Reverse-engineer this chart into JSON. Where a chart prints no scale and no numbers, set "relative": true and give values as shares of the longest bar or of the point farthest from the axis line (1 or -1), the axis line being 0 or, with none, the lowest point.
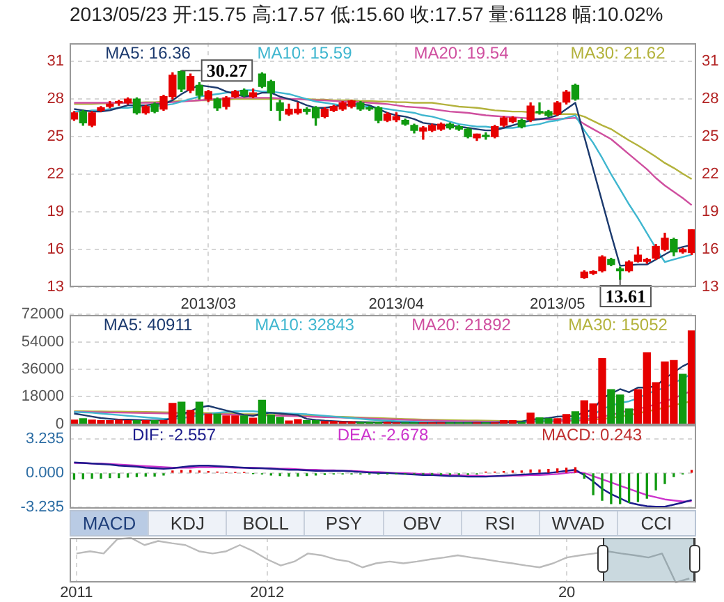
{
  "chart_data": [
    {
      "type": "candlestick",
      "title": "2013/05/23 开:15.75 高:17.57 低:15.60 收:17.57 量:61128 幅:10.02%",
      "categories": [
        null,
        null,
        null,
        null,
        null,
        null,
        null,
        null,
        null,
        null,
        null,
        null,
        null,
        null,
        null,
        "2013/03",
        null,
        null,
        null,
        null,
        null,
        null,
        null,
        null,
        null,
        null,
        null,
        null,
        null,
        null,
        null,
        null,
        null,
        null,
        null,
        null,
        "2013/04",
        null,
        null,
        null,
        null,
        null,
        null,
        null,
        null,
        null,
        null,
        null,
        null,
        null,
        null,
        null,
        null,
        null,
        "2013/05",
        null,
        null,
        null,
        null,
        null,
        null,
        null,
        null,
        null,
        null,
        null,
        null,
        null,
        null,
        null
      ],
      "ohlc": [
        [
          26.4,
          27.0,
          26.3,
          26.9
        ],
        [
          27.0,
          27.1,
          25.9,
          26.1
        ],
        [
          25.9,
          27.0,
          25.8,
          26.9
        ],
        [
          27.1,
          27.4,
          27.0,
          27.3
        ],
        [
          27.4,
          27.8,
          27.3,
          27.6
        ],
        [
          27.7,
          27.9,
          27.5,
          27.75
        ],
        [
          27.7,
          28.1,
          27.6,
          28.0
        ],
        [
          28.0,
          28.1,
          26.8,
          26.9
        ],
        [
          26.9,
          27.5,
          26.8,
          27.4
        ],
        [
          27.6,
          27.7,
          26.9,
          27.0
        ],
        [
          27.2,
          28.3,
          27.1,
          28.2
        ],
        [
          28.2,
          30.1,
          28.0,
          29.9
        ],
        [
          30.2,
          30.27,
          28.6,
          28.8
        ],
        [
          28.7,
          30.0,
          28.5,
          29.8
        ],
        [
          29.1,
          29.3,
          28.0,
          28.3
        ],
        [
          28.0,
          28.7,
          27.8,
          28.6
        ],
        [
          28.0,
          28.1,
          27.1,
          27.3
        ],
        [
          27.4,
          28.2,
          27.2,
          28.1
        ],
        [
          28.2,
          28.7,
          28.1,
          28.6
        ],
        [
          28.7,
          28.8,
          28.2,
          28.3
        ],
        [
          28.2,
          28.8,
          28.1,
          28.5
        ],
        [
          30.0,
          30.1,
          28.9,
          29.0
        ],
        [
          29.4,
          29.5,
          27.1,
          28.5
        ],
        [
          27.7,
          27.9,
          26.3,
          27.1
        ],
        [
          26.8,
          27.6,
          26.7,
          27.2
        ],
        [
          26.9,
          27.7,
          26.8,
          27.2
        ],
        [
          27.2,
          27.3,
          26.8,
          27.0
        ],
        [
          27.3,
          27.4,
          25.9,
          26.5
        ],
        [
          26.6,
          27.3,
          26.5,
          27.2
        ],
        [
          27.1,
          27.5,
          27.0,
          27.4
        ],
        [
          27.2,
          27.8,
          27.1,
          27.7
        ],
        [
          27.4,
          27.9,
          27.3,
          27.85
        ],
        [
          27.7,
          27.8,
          27.1,
          27.2
        ],
        [
          27.3,
          27.4,
          27.1,
          27.2
        ],
        [
          27.3,
          27.4,
          26.1,
          26.3
        ],
        [
          26.3,
          26.9,
          26.2,
          26.8
        ],
        [
          26.35,
          26.9,
          26.2,
          26.6
        ],
        [
          26.3,
          26.4,
          25.9,
          26.0
        ],
        [
          25.9,
          26.0,
          25.3,
          25.5
        ],
        [
          25.45,
          25.8,
          24.8,
          25.7
        ],
        [
          25.5,
          26.0,
          25.4,
          25.9
        ],
        [
          25.6,
          26.1,
          25.5,
          26.0
        ],
        [
          26.0,
          26.1,
          25.6,
          25.7
        ],
        [
          25.8,
          25.9,
          25.5,
          25.6
        ],
        [
          25.6,
          25.7,
          24.9,
          25.0
        ],
        [
          24.9,
          25.2,
          24.7,
          25.2
        ],
        [
          25.1,
          25.3,
          24.8,
          25.0
        ],
        [
          25.0,
          25.9,
          24.9,
          25.8
        ],
        [
          25.9,
          26.6,
          25.8,
          26.5
        ],
        [
          26.2,
          26.6,
          26.1,
          26.5
        ],
        [
          26.3,
          26.4,
          25.7,
          25.8
        ],
        [
          26.35,
          27.7,
          26.2,
          27.45
        ],
        [
          27.0,
          27.7,
          26.8,
          26.9
        ],
        [
          27.0,
          27.1,
          26.6,
          26.7
        ],
        [
          26.8,
          27.8,
          26.7,
          27.7
        ],
        [
          27.75,
          28.7,
          27.6,
          28.55
        ],
        [
          29.1,
          29.2,
          27.9,
          28.0
        ],
        [
          13.75,
          14.3,
          13.7,
          14.2
        ],
        [
          14.1,
          14.3,
          14.0,
          14.25
        ],
        [
          14.3,
          15.5,
          14.2,
          15.4
        ],
        [
          15.2,
          15.3,
          14.7,
          14.8
        ],
        [
          14.45,
          14.6,
          13.61,
          14.3
        ],
        [
          14.3,
          15.1,
          14.2,
          15.0
        ],
        [
          15.05,
          16.2,
          15.0,
          15.55
        ],
        [
          15.05,
          15.3,
          14.9,
          15.2
        ],
        [
          15.3,
          16.4,
          15.2,
          16.25
        ],
        [
          16.0,
          17.3,
          15.9,
          16.9
        ],
        [
          16.8,
          16.9,
          15.5,
          15.8
        ],
        [
          15.8,
          16.1,
          15.7,
          16.0
        ],
        [
          15.75,
          17.57,
          15.6,
          17.57
        ]
      ],
      "colors": [
        "#e60000",
        "#109a10",
        "#e60000",
        "#e60000",
        "#e60000",
        "#e60000",
        "#e60000",
        "#109a10",
        "#e60000",
        "#109a10",
        "#e60000",
        "#e60000",
        "#109a10",
        "#e60000",
        "#109a10",
        "#e60000",
        "#109a10",
        "#e60000",
        "#e60000",
        "#109a10",
        "#e60000",
        "#109a10",
        "#109a10",
        "#109a10",
        "#e60000",
        "#e60000",
        "#109a10",
        "#109a10",
        "#e60000",
        "#e60000",
        "#e60000",
        "#e60000",
        "#109a10",
        "#109a10",
        "#109a10",
        "#e60000",
        "#e60000",
        "#109a10",
        "#109a10",
        "#e60000",
        "#e60000",
        "#e60000",
        "#109a10",
        "#109a10",
        "#109a10",
        "#e60000",
        "#109a10",
        "#e60000",
        "#e60000",
        "#e60000",
        "#109a10",
        "#e60000",
        "#109a10",
        "#109a10",
        "#e60000",
        "#e60000",
        "#109a10",
        "#e60000",
        "#e60000",
        "#e60000",
        "#109a10",
        "#109a10",
        "#e60000",
        "#e60000",
        "#e60000",
        "#e60000",
        "#e60000",
        "#109a10",
        "#e60000",
        "#e60000"
      ],
      "series": [
        {
          "type": "line",
          "name": "MA5: 16.36",
          "color": "#1c3a6e",
          "values": [
            27.2,
            27.1,
            27.0,
            27.0,
            27.1,
            27.3,
            27.5,
            27.5,
            27.5,
            27.6,
            27.6,
            27.9,
            28.4,
            28.8,
            29.1,
            29.0,
            28.9,
            28.6,
            28.4,
            28.2,
            28.3,
            28.5,
            28.5,
            28.2,
            28.0,
            27.8,
            27.5,
            27.3,
            27.3,
            27.4,
            27.5,
            27.6,
            27.6,
            27.5,
            27.2,
            26.9,
            26.7,
            26.6,
            26.4,
            26.1,
            26.0,
            25.9,
            25.9,
            25.8,
            25.7,
            25.6,
            25.5,
            25.5,
            25.7,
            25.9,
            26.1,
            26.3,
            26.4,
            26.5,
            26.7,
            27.2,
            27.7,
            25.0,
            22.4,
            19.8,
            17.2,
            14.7,
            14.75,
            14.8,
            14.8,
            15.2,
            15.6,
            16.0,
            16.2,
            16.36
          ]
        },
        {
          "type": "line",
          "name": "MA10: 15.59",
          "color": "#3fb6cf",
          "values": [
            27.0,
            27.0,
            27.1,
            27.1,
            27.2,
            27.3,
            27.3,
            27.4,
            27.4,
            27.4,
            27.5,
            27.6,
            27.8,
            28.0,
            28.2,
            28.3,
            28.4,
            28.5,
            28.6,
            28.7,
            28.7,
            28.6,
            28.6,
            28.5,
            28.4,
            28.2,
            28.0,
            27.8,
            27.7,
            27.6,
            27.5,
            27.5,
            27.4,
            27.4,
            27.3,
            27.2,
            27.1,
            27.0,
            26.9,
            26.7,
            26.6,
            26.4,
            26.2,
            26.0,
            25.9,
            25.8,
            25.8,
            25.7,
            25.7,
            25.7,
            25.8,
            25.9,
            26.0,
            26.2,
            26.3,
            26.5,
            26.7,
            25.5,
            24.5,
            23.3,
            22.0,
            20.8,
            19.6,
            18.5,
            17.3,
            16.1,
            15.0,
            15.2,
            15.4,
            15.59
          ]
        },
        {
          "type": "line",
          "name": "MA20: 19.54",
          "color": "#cf4f9f",
          "values": [
            27.7,
            27.7,
            27.7,
            27.7,
            27.7,
            27.7,
            27.7,
            27.7,
            27.7,
            27.7,
            27.7,
            27.75,
            27.8,
            27.85,
            27.9,
            27.95,
            28.0,
            28.05,
            28.1,
            28.1,
            28.1,
            28.1,
            28.1,
            28.05,
            28.0,
            28.0,
            27.95,
            27.9,
            27.9,
            27.85,
            27.8,
            27.8,
            27.75,
            27.7,
            27.65,
            27.6,
            27.5,
            27.4,
            27.35,
            27.3,
            27.2,
            27.1,
            27.0,
            26.95,
            26.9,
            26.8,
            26.7,
            26.65,
            26.6,
            26.55,
            26.5,
            26.45,
            26.4,
            26.4,
            26.4,
            26.45,
            26.5,
            26.0,
            25.6,
            25.2,
            24.8,
            24.2,
            23.6,
            23.0,
            22.4,
            21.7,
            21.1,
            20.6,
            20.1,
            19.54
          ]
        },
        {
          "type": "line",
          "name": "MA30: 21.62",
          "color": "#b3b23c",
          "values": [
            27.6,
            27.6,
            27.6,
            27.65,
            27.65,
            27.7,
            27.7,
            27.7,
            27.75,
            27.75,
            27.8,
            27.8,
            27.85,
            27.85,
            27.9,
            27.9,
            27.95,
            27.95,
            28.0,
            28.0,
            28.0,
            28.0,
            28.0,
            28.0,
            28.0,
            28.0,
            28.0,
            27.95,
            27.95,
            27.9,
            27.9,
            27.9,
            27.85,
            27.85,
            27.8,
            27.8,
            27.75,
            27.75,
            27.7,
            27.7,
            27.7,
            27.6,
            27.5,
            27.4,
            27.35,
            27.3,
            27.2,
            27.1,
            27.05,
            27.0,
            27.0,
            26.95,
            26.9,
            26.85,
            26.8,
            26.8,
            26.8,
            26.6,
            26.25,
            25.9,
            25.6,
            25.15,
            24.7,
            24.3,
            23.85,
            23.4,
            22.9,
            22.5,
            22.05,
            21.62
          ]
        }
      ],
      "ylim": [
        13,
        32.5
      ],
      "yticks": [
        13,
        16,
        19,
        22,
        25,
        28,
        31
      ],
      "y2lim": [
        13,
        32.5
      ],
      "y2ticks": [
        13,
        16,
        19,
        22,
        25,
        28,
        31
      ],
      "grid": true,
      "legend": "top",
      "annotations": [
        {
          "text": "30.27",
          "y": 30.27
        },
        {
          "text": "13.61",
          "y": 13.61
        }
      ]
    },
    {
      "type": "bar",
      "categories": [
        null,
        null,
        null,
        null,
        null,
        null,
        null,
        null,
        null,
        null,
        null,
        null,
        null,
        null,
        null,
        "2013/03",
        null,
        null,
        null,
        null,
        null,
        null,
        null,
        null,
        null,
        null,
        null,
        null,
        null,
        null,
        null,
        null,
        null,
        null,
        null,
        null,
        "2013/04",
        null,
        null,
        null,
        null,
        null,
        null,
        null,
        null,
        null,
        null,
        null,
        null,
        null,
        null,
        null,
        null,
        null,
        "2013/05",
        null,
        null,
        null,
        null,
        null,
        null,
        null,
        null,
        null,
        null,
        null,
        null,
        null,
        null,
        null
      ],
      "series": [
        {
          "type": "bar",
          "values": [
            2700,
            3600,
            2700,
            2400,
            2400,
            2700,
            2400,
            2400,
            2400,
            2400,
            2400,
            13600,
            14500,
            9100,
            14500,
            6700,
            6700,
            5400,
            5400,
            5400,
            3900,
            15700,
            6000,
            4500,
            2100,
            3000,
            2400,
            2400,
            1800,
            1800,
            1500,
            1500,
            1200,
            1200,
            1200,
            1200,
            900,
            900,
            900,
            900,
            900,
            900,
            900,
            900,
            900,
            900,
            900,
            900,
            2400,
            2400,
            1200,
            7300,
            4200,
            3600,
            3600,
            6400,
            8200,
            15400,
            13300,
            43000,
            22700,
            19100,
            10000,
            22700,
            46900,
            27200,
            40800,
            41700,
            32700,
            61128
          ],
          "colors": [
            "#e60000",
            "#109a10",
            "#e60000",
            "#e60000",
            "#e60000",
            "#e60000",
            "#e60000",
            "#109a10",
            "#e60000",
            "#109a10",
            "#e60000",
            "#e60000",
            "#109a10",
            "#e60000",
            "#109a10",
            "#e60000",
            "#109a10",
            "#e60000",
            "#e60000",
            "#109a10",
            "#e60000",
            "#109a10",
            "#109a10",
            "#109a10",
            "#e60000",
            "#e60000",
            "#109a10",
            "#109a10",
            "#e60000",
            "#e60000",
            "#e60000",
            "#e60000",
            "#109a10",
            "#109a10",
            "#109a10",
            "#e60000",
            "#e60000",
            "#109a10",
            "#109a10",
            "#e60000",
            "#e60000",
            "#e60000",
            "#109a10",
            "#109a10",
            "#109a10",
            "#e60000",
            "#109a10",
            "#e60000",
            "#e60000",
            "#e60000",
            "#109a10",
            "#e60000",
            "#109a10",
            "#109a10",
            "#e60000",
            "#e60000",
            "#109a10",
            "#e60000",
            "#e60000",
            "#e60000",
            "#109a10",
            "#109a10",
            "#109a10",
            "#e60000",
            "#e60000",
            "#e60000",
            "#e60000",
            "#e60000",
            "#109a10",
            "#e60000"
          ]
        },
        {
          "type": "line",
          "name": "MA5: 40911",
          "color": "#1c3a6e",
          "values": [
            7000,
            6000,
            5000,
            4000,
            3500,
            3000,
            3000,
            2800,
            2600,
            2500,
            2500,
            4000,
            6500,
            8500,
            11000,
            12000,
            10500,
            9000,
            7500,
            6000,
            5500,
            7000,
            7500,
            7000,
            6500,
            6000,
            3500,
            2800,
            2300,
            2000,
            1700,
            1500,
            1400,
            1300,
            1200,
            1200,
            1100,
            1000,
            900,
            900,
            900,
            900,
            900,
            900,
            900,
            900,
            900,
            900,
            1200,
            1500,
            1700,
            3000,
            3500,
            4000,
            5000,
            5200,
            5200,
            8000,
            9500,
            17000,
            20000,
            23000,
            21000,
            24000,
            24000,
            25000,
            30000,
            34000,
            38000,
            40911
          ]
        },
        {
          "type": "line",
          "name": "MA10: 32843",
          "color": "#3fb6cf",
          "values": [
            8000,
            7800,
            7500,
            7000,
            6500,
            6000,
            5500,
            5000,
            4500,
            4000,
            3500,
            3500,
            4000,
            4800,
            5800,
            6800,
            7500,
            8000,
            8500,
            8500,
            8500,
            8000,
            7500,
            7300,
            7000,
            6800,
            6500,
            6000,
            5500,
            5000,
            4500,
            4000,
            3500,
            3000,
            2600,
            2300,
            2000,
            1800,
            1600,
            1400,
            1300,
            1200,
            1100,
            1000,
            1000,
            1000,
            1000,
            1000,
            1100,
            1200,
            1300,
            1800,
            2200,
            2600,
            3000,
            3300,
            3600,
            4500,
            6000,
            10000,
            12000,
            14000,
            15000,
            17000,
            20000,
            22000,
            24000,
            27000,
            30000,
            32843
          ]
        },
        {
          "type": "line",
          "name": "MA20: 21892",
          "color": "#cf4f9f",
          "values": [
            8100,
            8000,
            7900,
            7800,
            7700,
            7600,
            7500,
            7400,
            7300,
            7200,
            7100,
            7000,
            6900,
            6800,
            6700,
            6600,
            6500,
            6400,
            6200,
            6000,
            5900,
            5800,
            5700,
            5600,
            5400,
            5200,
            5000,
            4800,
            4600,
            4500,
            4300,
            4100,
            3900,
            3700,
            3500,
            3300,
            3100,
            2900,
            2700,
            2500,
            2400,
            2200,
            2100,
            2000,
            1900,
            1800,
            1700,
            1600,
            1600,
            1500,
            1500,
            1600,
            1700,
            1800,
            2000,
            2200,
            2400,
            3000,
            4000,
            5000,
            6000,
            7500,
            9000,
            10000,
            11500,
            13000,
            15000,
            17000,
            19500,
            21892
          ]
        },
        {
          "type": "line",
          "name": "MA30: 15052",
          "color": "#b3b23c",
          "values": [
            8500,
            8450,
            8400,
            8350,
            8300,
            8250,
            8200,
            8100,
            8000,
            7900,
            7800,
            7700,
            7600,
            7500,
            7400,
            7300,
            7200,
            7000,
            6800,
            6600,
            6500,
            6300,
            6100,
            6000,
            5800,
            5600,
            5500,
            5300,
            5100,
            5000,
            4800,
            4600,
            4400,
            4200,
            4000,
            3800,
            3600,
            3400,
            3200,
            3000,
            2900,
            2800,
            2700,
            2600,
            2500,
            2400,
            2300,
            2200,
            2100,
            2000,
            2000,
            2000,
            2100,
            2200,
            2200,
            2300,
            2400,
            2500,
            3000,
            3500,
            4000,
            5000,
            6000,
            7000,
            8500,
            9500,
            11000,
            12500,
            13800,
            15052
          ]
        }
      ],
      "ylim": [
        0,
        72000
      ],
      "yticks": [
        0,
        18000,
        36000,
        54000,
        72000
      ],
      "grid": true,
      "legend": "top",
      "tick_labels": "y"
    },
    {
      "type": "bar",
      "categories": [
        null,
        null,
        null,
        null,
        null,
        null,
        null,
        null,
        null,
        null,
        null,
        null,
        null,
        null,
        null,
        "2013/03",
        null,
        null,
        null,
        null,
        null,
        null,
        null,
        null,
        null,
        null,
        null,
        null,
        null,
        null,
        null,
        null,
        null,
        null,
        null,
        null,
        "2013/04",
        null,
        null,
        null,
        null,
        null,
        null,
        null,
        null,
        null,
        null,
        null,
        null,
        null,
        null,
        null,
        null,
        null,
        "2013/05",
        null,
        null,
        null,
        null,
        null,
        null,
        null,
        null,
        null,
        null,
        null,
        null,
        null,
        null,
        null
      ],
      "series": [
        {
          "type": "line",
          "name": "DIF: -2.557",
          "color": "#1c1c8c",
          "values": [
            1.0,
            0.95,
            0.9,
            0.85,
            0.8,
            0.7,
            0.65,
            0.6,
            0.5,
            0.45,
            0.4,
            0.45,
            0.55,
            0.65,
            0.7,
            0.7,
            0.65,
            0.6,
            0.55,
            0.5,
            0.45,
            0.45,
            0.4,
            0.35,
            0.3,
            0.3,
            0.25,
            0.2,
            0.2,
            0.2,
            0.2,
            0.15,
            0.1,
            0.05,
            0.0,
            0.0,
            -0.05,
            -0.1,
            -0.15,
            -0.2,
            -0.2,
            -0.25,
            -0.3,
            -0.3,
            -0.35,
            -0.35,
            -0.35,
            -0.3,
            -0.25,
            -0.2,
            -0.15,
            -0.1,
            -0.05,
            0.0,
            0.1,
            0.2,
            0.3,
            -0.2,
            -0.8,
            -1.5,
            -2.0,
            -2.4,
            -2.8,
            -3.0,
            -3.15,
            -3.2,
            -3.2,
            -3.0,
            -2.8,
            -2.557
          ]
        },
        {
          "type": "line",
          "name": "DEA: -2.678",
          "color": "#cc33cc",
          "values": [
            0.95,
            0.95,
            0.9,
            0.9,
            0.85,
            0.8,
            0.75,
            0.7,
            0.65,
            0.6,
            0.55,
            0.5,
            0.5,
            0.5,
            0.55,
            0.55,
            0.55,
            0.55,
            0.5,
            0.5,
            0.5,
            0.45,
            0.45,
            0.4,
            0.4,
            0.35,
            0.3,
            0.3,
            0.25,
            0.25,
            0.2,
            0.2,
            0.15,
            0.1,
            0.1,
            0.05,
            0.0,
            0.0,
            -0.05,
            -0.1,
            -0.1,
            -0.15,
            -0.2,
            -0.2,
            -0.25,
            -0.25,
            -0.3,
            -0.3,
            -0.3,
            -0.25,
            -0.25,
            -0.2,
            -0.2,
            -0.15,
            -0.1,
            0.0,
            0.1,
            0.0,
            -0.3,
            -0.6,
            -0.9,
            -1.2,
            -1.5,
            -1.8,
            -2.1,
            -2.3,
            -2.5,
            -2.6,
            -2.7,
            -2.678
          ]
        },
        {
          "type": "bar",
          "name": "MACD: 0.243",
          "color": "#c03030",
          "values": [
            -0.6,
            -0.55,
            -0.5,
            -0.5,
            -0.45,
            -0.45,
            -0.4,
            -0.35,
            -0.3,
            -0.3,
            -0.2,
            0.2,
            0.25,
            0.25,
            0.2,
            0.15,
            0.1,
            0.05,
            0.05,
            0.05,
            -0.05,
            -0.1,
            -0.2,
            -0.25,
            -0.3,
            -0.3,
            -0.25,
            -0.2,
            -0.15,
            -0.1,
            -0.1,
            -0.1,
            -0.1,
            -0.1,
            -0.1,
            -0.1,
            -0.1,
            -0.1,
            -0.1,
            -0.1,
            -0.15,
            -0.15,
            -0.15,
            -0.15,
            -0.15,
            -0.1,
            0.1,
            0.1,
            0.15,
            0.2,
            0.2,
            0.3,
            0.3,
            0.35,
            0.4,
            0.45,
            0.5,
            -0.5,
            -2.07,
            -2.6,
            -2.9,
            -2.9,
            -2.8,
            -2.7,
            -2.4,
            -1.6,
            -1.0,
            -0.35,
            -0.1,
            0.243
          ],
          "colors": [
            "#109a10",
            "#109a10",
            "#109a10",
            "#109a10",
            "#109a10",
            "#109a10",
            "#109a10",
            "#109a10",
            "#109a10",
            "#109a10",
            "#109a10",
            "#e60000",
            "#e60000",
            "#e60000",
            "#e60000",
            "#e60000",
            "#e60000",
            "#e60000",
            "#e60000",
            "#e60000",
            "#109a10",
            "#109a10",
            "#109a10",
            "#109a10",
            "#109a10",
            "#109a10",
            "#109a10",
            "#109a10",
            "#109a10",
            "#109a10",
            "#109a10",
            "#109a10",
            "#109a10",
            "#109a10",
            "#109a10",
            "#109a10",
            "#109a10",
            "#109a10",
            "#109a10",
            "#109a10",
            "#109a10",
            "#109a10",
            "#109a10",
            "#109a10",
            "#109a10",
            "#109a10",
            "#e60000",
            "#e60000",
            "#e60000",
            "#e60000",
            "#e60000",
            "#e60000",
            "#e60000",
            "#e60000",
            "#e60000",
            "#e60000",
            "#e60000",
            "#109a10",
            "#109a10",
            "#109a10",
            "#109a10",
            "#109a10",
            "#109a10",
            "#109a10",
            "#109a10",
            "#109a10",
            "#109a10",
            "#109a10",
            "#109a10",
            "#e60000"
          ]
        }
      ],
      "ylim": [
        -3.3,
        4.6
      ],
      "yticks": [
        -3.235,
        {
          "value": 0,
          "label": "0.000"
        },
        3.235
      ],
      "grid": "y",
      "legend": "top",
      "tick_labels": "y",
      "annotations": [
        "MACD",
        "KDJ",
        "BOLL",
        "PSY",
        "OBV",
        "RSI",
        "WVAD",
        "CCI"
      ]
    },
    {
      "type": "line",
      "relative": true,
      "color": "#bbbbbb",
      "categories": [
        "2011",
        null,
        null,
        null,
        null,
        null,
        null,
        null,
        null,
        null,
        null,
        null,
        null,
        null,
        "2012",
        null,
        null,
        null,
        null,
        null,
        null,
        null,
        null,
        null,
        null,
        null,
        null,
        null,
        null,
        null,
        null,
        null,
        null,
        null,
        null,
        null,
        "20",
        null,
        null,
        null,
        null,
        null,
        null,
        null,
        null,
        null
      ],
      "values": [
        0.65,
        0.7,
        0.65,
        0.97,
        1.0,
        0.84,
        0.93,
        0.88,
        0.84,
        0.7,
        0.65,
        0.7,
        0.84,
        0.7,
        0.52,
        0.38,
        0.47,
        0.65,
        0.61,
        0.52,
        0.47,
        0.34,
        0.43,
        0.47,
        0.43,
        0.47,
        0.52,
        0.56,
        0.61,
        0.56,
        0.52,
        0.47,
        0.43,
        0.38,
        0.34,
        0.43,
        0.56,
        0.61,
        0.65,
        0.7,
        0.65,
        0.61,
        0.56,
        0.65,
        0,
        0.09
      ],
      "grid": "x"
    }
  ]
}
